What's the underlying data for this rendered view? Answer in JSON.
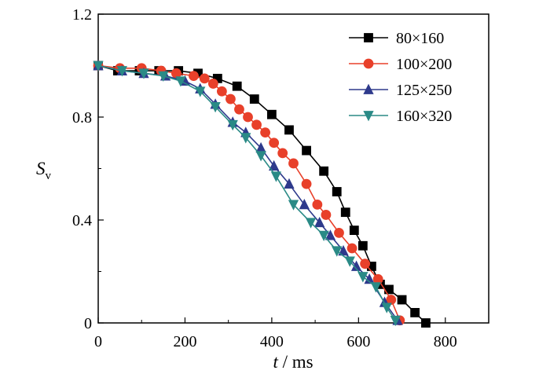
{
  "chart_data": {
    "type": "line",
    "xlabel": {
      "var": "t",
      "sep": " / ",
      "unit": "ms"
    },
    "ylabel": {
      "var": "S",
      "sub": "v"
    },
    "xlim": [
      0,
      900
    ],
    "ylim": [
      0,
      1.2
    ],
    "xticks": [
      0,
      200,
      400,
      600,
      800
    ],
    "yticks": [
      0,
      0.4,
      0.8,
      1.2
    ],
    "xtick_labels": [
      "0",
      "200",
      "400",
      "600",
      "800"
    ],
    "ytick_labels": [
      "0",
      "0.4",
      "0.8",
      "1.2"
    ],
    "legend_position": "top-right",
    "grid": false,
    "series": [
      {
        "name": "80×160",
        "color": "#000000",
        "marker": "square",
        "x": [
          0,
          45,
          95,
          140,
          185,
          230,
          275,
          320,
          360,
          400,
          440,
          480,
          520,
          550,
          570,
          590,
          610,
          630,
          650,
          670,
          700,
          730,
          755
        ],
        "y": [
          1.0,
          0.98,
          0.98,
          0.98,
          0.98,
          0.97,
          0.95,
          0.92,
          0.87,
          0.81,
          0.75,
          0.67,
          0.59,
          0.51,
          0.43,
          0.36,
          0.3,
          0.22,
          0.15,
          0.13,
          0.09,
          0.04,
          0.0
        ]
      },
      {
        "name": "100×200",
        "color": "#e8402a",
        "marker": "circle",
        "x": [
          0,
          50,
          100,
          145,
          180,
          220,
          245,
          265,
          285,
          305,
          325,
          345,
          365,
          385,
          405,
          425,
          450,
          480,
          505,
          525,
          555,
          585,
          615,
          645,
          675,
          695
        ],
        "y": [
          1.0,
          0.99,
          0.99,
          0.98,
          0.97,
          0.96,
          0.95,
          0.93,
          0.9,
          0.87,
          0.83,
          0.8,
          0.77,
          0.74,
          0.7,
          0.66,
          0.62,
          0.54,
          0.46,
          0.42,
          0.35,
          0.29,
          0.23,
          0.17,
          0.09,
          0.01
        ]
      },
      {
        "name": "125×250",
        "color": "#2e3a8c",
        "marker": "triangle-up",
        "x": [
          0,
          55,
          105,
          155,
          200,
          235,
          270,
          310,
          340,
          375,
          405,
          440,
          475,
          510,
          535,
          565,
          595,
          625,
          660,
          690
        ],
        "y": [
          1.0,
          0.98,
          0.97,
          0.96,
          0.94,
          0.91,
          0.85,
          0.78,
          0.74,
          0.68,
          0.61,
          0.54,
          0.46,
          0.39,
          0.34,
          0.28,
          0.22,
          0.17,
          0.08,
          0.01
        ]
      },
      {
        "name": "160×320",
        "color": "#2a8a86",
        "marker": "triangle-down",
        "x": [
          0,
          55,
          105,
          150,
          190,
          235,
          270,
          310,
          340,
          375,
          410,
          450,
          490,
          520,
          550,
          580,
          610,
          640,
          665,
          685
        ],
        "y": [
          1.0,
          0.98,
          0.97,
          0.96,
          0.94,
          0.9,
          0.84,
          0.77,
          0.72,
          0.65,
          0.57,
          0.46,
          0.39,
          0.34,
          0.28,
          0.24,
          0.18,
          0.14,
          0.06,
          0.01
        ]
      }
    ]
  }
}
